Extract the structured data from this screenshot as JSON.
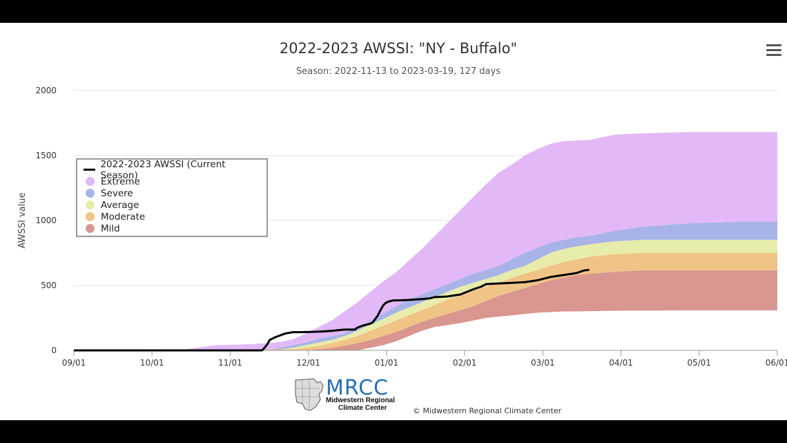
{
  "chart": {
    "title": "2022-2023 AWSSI: \"NY - Buffalo\"",
    "subtitle": "Season: 2022-11-13 to 2023-03-19, 127 days",
    "menu_icon": "hamburger-menu-icon",
    "credit": "© Midwestern Regional Climate Center",
    "logo": {
      "name": "MRCC",
      "line1": "Midwestern Regional",
      "line2": "Climate Center"
    }
  },
  "chart_data": {
    "type": "area",
    "ylabel": "AWSSI value",
    "ylim": [
      0,
      2000
    ],
    "yticks": [
      0,
      500,
      1000,
      1500,
      2000
    ],
    "xticks": [
      "09/01",
      "10/01",
      "11/01",
      "12/01",
      "01/01",
      "02/01",
      "03/01",
      "04/01",
      "05/01",
      "06/01"
    ],
    "x_unit": "days since 09/01",
    "grid": "horizontal",
    "legend_position": "upper-left",
    "bands": [
      {
        "name": "Extreme",
        "color": "#e2b8f6",
        "x": [
          0,
          40,
          55,
          65,
          75,
          80,
          85,
          90,
          95,
          100,
          105,
          110,
          115,
          120,
          125,
          130,
          135,
          140,
          145,
          150,
          155,
          160,
          165,
          170,
          175,
          180,
          185,
          190,
          195,
          200,
          210,
          220,
          240,
          260,
          273
        ],
        "upper": [
          0,
          0,
          40,
          45,
          55,
          65,
          85,
          130,
          180,
          230,
          300,
          370,
          450,
          530,
          600,
          690,
          780,
          880,
          980,
          1080,
          1180,
          1280,
          1370,
          1430,
          1500,
          1550,
          1590,
          1610,
          1615,
          1620,
          1660,
          1670,
          1680,
          1680,
          1680
        ],
        "lower": [
          0,
          0,
          0,
          0,
          0,
          20,
          40,
          60,
          90,
          110,
          130,
          180,
          230,
          280,
          340,
          390,
          430,
          470,
          510,
          550,
          590,
          620,
          650,
          700,
          750,
          790,
          830,
          850,
          870,
          880,
          920,
          950,
          980,
          990,
          990
        ]
      },
      {
        "name": "Severe",
        "color": "#a8b4e8",
        "x": [
          0,
          75,
          80,
          85,
          90,
          95,
          100,
          105,
          110,
          115,
          120,
          125,
          130,
          135,
          140,
          145,
          150,
          155,
          160,
          165,
          170,
          175,
          180,
          185,
          190,
          195,
          200,
          210,
          220,
          240,
          260,
          273
        ],
        "upper": [
          0,
          0,
          20,
          40,
          60,
          90,
          110,
          130,
          180,
          230,
          280,
          340,
          390,
          430,
          470,
          510,
          550,
          590,
          620,
          650,
          700,
          750,
          790,
          830,
          850,
          870,
          880,
          920,
          950,
          980,
          990,
          990
        ],
        "lower": [
          0,
          0,
          5,
          20,
          40,
          60,
          80,
          110,
          150,
          200,
          240,
          290,
          330,
          370,
          410,
          450,
          490,
          520,
          550,
          580,
          620,
          650,
          700,
          750,
          780,
          800,
          815,
          840,
          850,
          850,
          850,
          850
        ]
      },
      {
        "name": "Average",
        "color": "#e8ecaa",
        "x": [
          0,
          80,
          85,
          90,
          95,
          100,
          105,
          110,
          115,
          120,
          125,
          130,
          135,
          140,
          145,
          150,
          155,
          160,
          165,
          170,
          175,
          180,
          185,
          190,
          195,
          200,
          210,
          220,
          240,
          260,
          273
        ],
        "upper": [
          0,
          5,
          20,
          40,
          60,
          80,
          110,
          150,
          200,
          240,
          290,
          330,
          370,
          410,
          450,
          490,
          520,
          550,
          580,
          620,
          650,
          700,
          750,
          780,
          800,
          815,
          840,
          850,
          850,
          850,
          850
        ],
        "lower": [
          0,
          0,
          8,
          20,
          35,
          55,
          80,
          110,
          150,
          190,
          230,
          270,
          310,
          350,
          390,
          420,
          460,
          490,
          520,
          560,
          590,
          620,
          650,
          680,
          700,
          720,
          740,
          750,
          750,
          750,
          750
        ]
      },
      {
        "name": "Moderate",
        "color": "#f0c486",
        "x": [
          0,
          85,
          90,
          95,
          100,
          105,
          110,
          115,
          120,
          125,
          130,
          135,
          140,
          145,
          150,
          155,
          160,
          165,
          170,
          175,
          180,
          185,
          190,
          195,
          200,
          210,
          220,
          240,
          260,
          273
        ],
        "upper": [
          0,
          8,
          20,
          35,
          55,
          80,
          110,
          150,
          190,
          230,
          270,
          310,
          350,
          390,
          420,
          460,
          490,
          520,
          560,
          590,
          620,
          650,
          680,
          700,
          720,
          740,
          750,
          750,
          750,
          750
        ],
        "lower": [
          0,
          0,
          0,
          10,
          20,
          35,
          55,
          80,
          110,
          140,
          180,
          220,
          250,
          280,
          310,
          340,
          380,
          420,
          450,
          480,
          510,
          540,
          560,
          580,
          590,
          605,
          615,
          615,
          615,
          615
        ]
      },
      {
        "name": "Mild",
        "color": "#d99690",
        "x": [
          0,
          90,
          95,
          100,
          105,
          110,
          115,
          120,
          125,
          130,
          135,
          140,
          145,
          150,
          155,
          160,
          165,
          170,
          175,
          180,
          185,
          190,
          195,
          200,
          210,
          220,
          240,
          260,
          273
        ],
        "upper": [
          0,
          0,
          10,
          20,
          35,
          55,
          80,
          110,
          140,
          180,
          220,
          250,
          280,
          310,
          340,
          380,
          420,
          450,
          480,
          510,
          540,
          560,
          580,
          590,
          605,
          615,
          615,
          615,
          615
        ],
        "lower": [
          0,
          0,
          0,
          0,
          0,
          0,
          20,
          40,
          70,
          110,
          150,
          180,
          195,
          210,
          230,
          250,
          260,
          270,
          280,
          290,
          295,
          300,
          300,
          302,
          305,
          306,
          308,
          308,
          308
        ]
      }
    ],
    "series": [
      {
        "name": "2022-2023 AWSSI (Current Season)",
        "color": "#000000",
        "x": [
          0,
          73,
          74,
          75,
          76,
          78,
          80,
          82,
          85,
          88,
          92,
          96,
          100,
          105,
          109,
          110,
          112,
          115,
          116,
          118,
          119,
          120,
          121,
          122,
          124,
          126,
          130,
          135,
          138,
          140,
          145,
          150,
          155,
          158,
          160,
          165,
          170,
          175,
          180,
          185,
          190,
          195,
          198,
          200
        ],
        "y": [
          0,
          0,
          20,
          45,
          80,
          100,
          115,
          130,
          140,
          140,
          142,
          145,
          150,
          160,
          160,
          175,
          190,
          205,
          215,
          270,
          310,
          345,
          365,
          375,
          385,
          385,
          388,
          395,
          400,
          410,
          415,
          430,
          470,
          490,
          510,
          515,
          520,
          525,
          540,
          565,
          580,
          595,
          615,
          620
        ]
      }
    ]
  }
}
